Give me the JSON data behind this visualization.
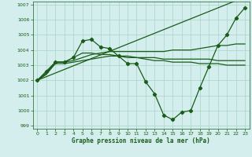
{
  "title": "Graphe pression niveau de la mer (hPa)",
  "bg_color": "#d4eeed",
  "grid_color": "#a8d5c8",
  "line_color": "#1a5c1a",
  "xlim": [
    -0.5,
    23.5
  ],
  "ylim": [
    998.8,
    1007.2
  ],
  "xticks": [
    0,
    1,
    2,
    3,
    4,
    5,
    6,
    7,
    8,
    9,
    10,
    11,
    12,
    13,
    14,
    15,
    16,
    17,
    18,
    19,
    20,
    21,
    22,
    23
  ],
  "yticks": [
    999,
    1000,
    1001,
    1002,
    1003,
    1004,
    1005,
    1006,
    1007
  ],
  "series": [
    {
      "x": [
        0,
        1,
        2,
        3,
        4,
        5,
        6,
        7,
        8,
        9,
        10,
        11,
        12,
        13,
        14,
        15,
        16,
        17,
        18,
        19,
        20,
        21,
        22,
        23
      ],
      "y": [
        1002.0,
        1002.6,
        1003.2,
        1003.2,
        1003.5,
        1004.6,
        1004.7,
        1004.2,
        1004.1,
        1003.6,
        1003.1,
        1003.1,
        1001.9,
        1001.1,
        999.7,
        999.4,
        999.9,
        1000.0,
        1001.5,
        1002.9,
        1004.3,
        1005.0,
        1006.1,
        1006.8
      ],
      "marker": true
    },
    {
      "x": [
        0,
        1,
        2,
        3,
        4,
        5,
        6,
        7,
        8,
        9,
        10,
        11,
        12,
        13,
        14,
        15,
        16,
        17,
        18,
        19,
        20,
        21,
        22,
        23
      ],
      "y": [
        1002.0,
        1002.4,
        1003.2,
        1003.2,
        1003.3,
        1003.5,
        1003.7,
        1003.8,
        1003.9,
        1003.9,
        1003.9,
        1003.9,
        1003.9,
        1003.9,
        1003.9,
        1004.0,
        1004.0,
        1004.0,
        1004.1,
        1004.2,
        1004.3,
        1004.3,
        1004.4,
        1004.4
      ],
      "marker": false
    },
    {
      "x": [
        0,
        1,
        2,
        3,
        4,
        5,
        6,
        7,
        8,
        9,
        10,
        11,
        12,
        13,
        14,
        15,
        16,
        17,
        18,
        19,
        20,
        21,
        22,
        23
      ],
      "y": [
        1002.0,
        1002.4,
        1003.1,
        1003.1,
        1003.2,
        1003.3,
        1003.4,
        1003.5,
        1003.6,
        1003.6,
        1003.6,
        1003.5,
        1003.4,
        1003.3,
        1003.3,
        1003.2,
        1003.2,
        1003.2,
        1003.1,
        1003.1,
        1003.1,
        1003.0,
        1003.0,
        1003.0
      ],
      "marker": false
    },
    {
      "x": [
        0,
        1,
        2,
        3,
        4,
        5,
        6,
        7,
        8,
        9,
        10,
        11,
        12,
        13,
        14,
        15,
        16,
        17,
        18,
        19,
        20,
        21,
        22,
        23
      ],
      "y": [
        1002.0,
        1002.5,
        1003.2,
        1003.2,
        1003.5,
        1003.8,
        1003.8,
        1003.7,
        1003.7,
        1003.6,
        1003.5,
        1003.5,
        1003.5,
        1003.5,
        1003.4,
        1003.4,
        1003.4,
        1003.4,
        1003.4,
        1003.4,
        1003.3,
        1003.3,
        1003.3,
        1003.3
      ],
      "marker": false
    },
    {
      "x": [
        0,
        23
      ],
      "y": [
        1002.0,
        1007.5
      ],
      "marker": false
    }
  ]
}
